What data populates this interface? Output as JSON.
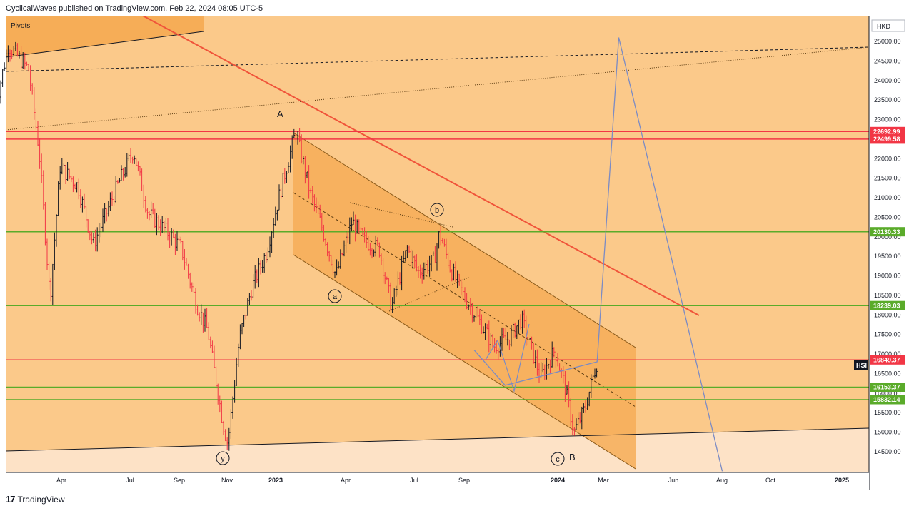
{
  "header": {
    "text": "CyclicalWaves published on TradingView.com, Feb 22, 2024 08:05 UTC-5"
  },
  "footer": {
    "brand": "TradingView",
    "logo": "17"
  },
  "chart": {
    "indicator_label": "Pivots",
    "currency": "HKD",
    "symbol_tag": "HSI"
  },
  "colors": {
    "background": "#fbc98a",
    "lower_band": "#fde2c6",
    "channel_fill": "#f6ad57",
    "resistance": "#f23645",
    "support": "#5aab2a",
    "trendline_red": "#f0543a",
    "projection": "#7b8bc4"
  },
  "chart_data": {
    "type": "candlestick",
    "title": "",
    "y_axis": {
      "ticks": [
        "25000.00",
        "24500.00",
        "24000.00",
        "23500.00",
        "23000.00",
        "22500.00",
        "22000.00",
        "21500.00",
        "21000.00",
        "20500.00",
        "20000.00",
        "19500.00",
        "19000.00",
        "18500.00",
        "18000.00",
        "17500.00",
        "17000.00",
        "16500.00",
        "16000.00",
        "15500.00",
        "15000.00",
        "14500.00"
      ],
      "range": [
        14000,
        25300
      ]
    },
    "x_axis": {
      "ticks": [
        {
          "label": "Apr",
          "bold": false
        },
        {
          "label": "Jul",
          "bold": false
        },
        {
          "label": "Sep",
          "bold": false
        },
        {
          "label": "Nov",
          "bold": false
        },
        {
          "label": "2023",
          "bold": true
        },
        {
          "label": "Apr",
          "bold": false
        },
        {
          "label": "Jul",
          "bold": false
        },
        {
          "label": "Sep",
          "bold": false
        },
        {
          "label": "2024",
          "bold": true
        },
        {
          "label": "Mar",
          "bold": false
        },
        {
          "label": "Jun",
          "bold": false
        },
        {
          "label": "Aug",
          "bold": false
        },
        {
          "label": "Oct",
          "bold": false
        },
        {
          "label": "2025",
          "bold": true
        }
      ]
    },
    "price_levels": [
      {
        "value": "22692.99",
        "type": "resistance"
      },
      {
        "value": "22499.58",
        "type": "resistance"
      },
      {
        "value": "20130.33",
        "type": "support"
      },
      {
        "value": "18239.03",
        "type": "support"
      },
      {
        "value": "16849.37",
        "type": "resistance"
      },
      {
        "value": "16153.37",
        "type": "support"
      },
      {
        "value": "15832.14",
        "type": "support"
      }
    ],
    "wave_labels": [
      {
        "label": "A",
        "circled": false
      },
      {
        "label": "B",
        "circled": false
      },
      {
        "label": "a",
        "circled": true
      },
      {
        "label": "b",
        "circled": true
      },
      {
        "label": "c",
        "circled": true
      },
      {
        "label": "y",
        "circled": true
      }
    ],
    "price_path": [
      [
        "2022-01-03",
        23300
      ],
      [
        "2022-01-20",
        24900
      ],
      [
        "2022-02-15",
        24300
      ],
      [
        "2022-03-01",
        22200
      ],
      [
        "2022-03-15",
        18400
      ],
      [
        "2022-03-28",
        21800
      ],
      [
        "2022-04-20",
        21300
      ],
      [
        "2022-05-10",
        19800
      ],
      [
        "2022-06-10",
        21300
      ],
      [
        "2022-07-01",
        22200
      ],
      [
        "2022-07-20",
        20600
      ],
      [
        "2022-08-15",
        20100
      ],
      [
        "2022-09-01",
        19700
      ],
      [
        "2022-09-20",
        18300
      ],
      [
        "2022-10-05",
        17600
      ],
      [
        "2022-10-25",
        15200
      ],
      [
        "2022-10-31",
        14700
      ],
      [
        "2022-11-15",
        17400
      ],
      [
        "2022-12-01",
        18700
      ],
      [
        "2022-12-20",
        19600
      ],
      [
        "2023-01-05",
        21000
      ],
      [
        "2023-01-27",
        22700
      ],
      [
        "2023-02-15",
        21100
      ],
      [
        "2023-03-01",
        20300
      ],
      [
        "2023-03-20",
        19000
      ],
      [
        "2023-04-10",
        20400
      ],
      [
        "2023-04-25",
        19900
      ],
      [
        "2023-05-15",
        19700
      ],
      [
        "2023-05-31",
        18200
      ],
      [
        "2023-06-20",
        19700
      ],
      [
        "2023-07-05",
        19100
      ],
      [
        "2023-07-25",
        19400
      ],
      [
        "2023-08-01",
        20100
      ],
      [
        "2023-08-15",
        19200
      ],
      [
        "2023-09-01",
        18500
      ],
      [
        "2023-09-20",
        17900
      ],
      [
        "2023-10-10",
        17200
      ],
      [
        "2023-10-30",
        17400
      ],
      [
        "2023-11-15",
        17900
      ],
      [
        "2023-11-30",
        17000
      ],
      [
        "2023-12-10",
        16400
      ],
      [
        "2023-12-28",
        17100
      ],
      [
        "2024-01-10",
        16200
      ],
      [
        "2024-01-22",
        15000
      ],
      [
        "2024-02-05",
        15600
      ],
      [
        "2024-02-21",
        16800
      ]
    ],
    "projection_path": [
      [
        "2023-09-15",
        17100
      ],
      [
        "2023-10-25",
        16200
      ],
      [
        "2024-02-21",
        16800
      ],
      [
        "2024-03-20",
        25100
      ],
      [
        "2024-08-01",
        14000
      ]
    ]
  }
}
